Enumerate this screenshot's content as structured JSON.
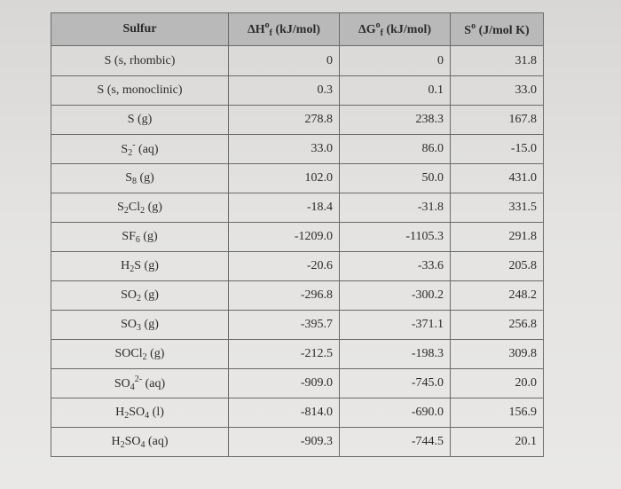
{
  "table": {
    "headers": [
      {
        "text": "Sulfur"
      },
      {
        "pre": "ΔH",
        "sup": "o",
        "sub": "f",
        "post": " (kJ/mol)"
      },
      {
        "pre": "ΔG",
        "sup": "o",
        "sub": "f",
        "post": " (kJ/mol)"
      },
      {
        "pre": "S",
        "sup": "o",
        "sub": "",
        "post": " (J/mol K)"
      }
    ],
    "rows": [
      {
        "species": [
          {
            "t": "S (s, rhombic)"
          }
        ],
        "dH": "0",
        "dG": "0",
        "S": "31.8"
      },
      {
        "species": [
          {
            "t": "S (s, monoclinic)"
          }
        ],
        "dH": "0.3",
        "dG": "0.1",
        "S": "33.0"
      },
      {
        "species": [
          {
            "t": "S (g)"
          }
        ],
        "dH": "278.8",
        "dG": "238.3",
        "S": "167.8"
      },
      {
        "species": [
          {
            "t": "S"
          },
          {
            "sub": "2"
          },
          {
            "sup": "-"
          },
          {
            "t": " (aq)"
          }
        ],
        "dH": "33.0",
        "dG": "86.0",
        "S": "-15.0"
      },
      {
        "species": [
          {
            "t": "S"
          },
          {
            "sub": "8"
          },
          {
            "t": " (g)"
          }
        ],
        "dH": "102.0",
        "dG": "50.0",
        "S": "431.0"
      },
      {
        "species": [
          {
            "t": "S"
          },
          {
            "sub": "2"
          },
          {
            "t": "Cl"
          },
          {
            "sub": "2"
          },
          {
            "t": " (g)"
          }
        ],
        "dH": "-18.4",
        "dG": "-31.8",
        "S": "331.5"
      },
      {
        "species": [
          {
            "t": "SF"
          },
          {
            "sub": "6"
          },
          {
            "t": " (g)"
          }
        ],
        "dH": "-1209.0",
        "dG": "-1105.3",
        "S": "291.8"
      },
      {
        "species": [
          {
            "t": "H"
          },
          {
            "sub": "2"
          },
          {
            "t": "S (g)"
          }
        ],
        "dH": "-20.6",
        "dG": "-33.6",
        "S": "205.8"
      },
      {
        "species": [
          {
            "t": "SO"
          },
          {
            "sub": "2"
          },
          {
            "t": " (g)"
          }
        ],
        "dH": "-296.8",
        "dG": "-300.2",
        "S": "248.2"
      },
      {
        "species": [
          {
            "t": "SO"
          },
          {
            "sub": "3"
          },
          {
            "t": " (g)"
          }
        ],
        "dH": "-395.7",
        "dG": "-371.1",
        "S": "256.8"
      },
      {
        "species": [
          {
            "t": "SOCl"
          },
          {
            "sub": "2"
          },
          {
            "t": " (g)"
          }
        ],
        "dH": "-212.5",
        "dG": "-198.3",
        "S": "309.8"
      },
      {
        "species": [
          {
            "t": "SO"
          },
          {
            "sub": "4"
          },
          {
            "sup": "2-"
          },
          {
            "t": " (aq)"
          }
        ],
        "dH": "-909.0",
        "dG": "-745.0",
        "S": "20.0"
      },
      {
        "species": [
          {
            "t": "H"
          },
          {
            "sub": "2"
          },
          {
            "t": "SO"
          },
          {
            "sub": "4"
          },
          {
            "t": " (l)"
          }
        ],
        "dH": "-814.0",
        "dG": "-690.0",
        "S": "156.9"
      },
      {
        "species": [
          {
            "t": "H"
          },
          {
            "sub": "2"
          },
          {
            "t": "SO"
          },
          {
            "sub": "4"
          },
          {
            "t": " (aq)"
          }
        ],
        "dH": "-909.3",
        "dG": "-744.5",
        "S": "20.1"
      }
    ]
  }
}
